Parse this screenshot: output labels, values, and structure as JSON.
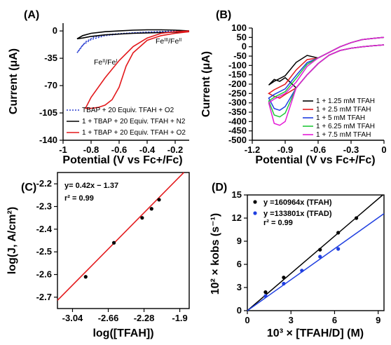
{
  "chart_data": [
    {
      "panel": "(A)",
      "type": "line",
      "xlabel": "Potential (V vs Fc+/Fc)",
      "ylabel": "Current (μA)",
      "xlim": [
        -1.0,
        -0.1
      ],
      "ylim": [
        -140,
        10
      ],
      "xticks": [
        "-1",
        "-0.8",
        "-0.6",
        "-0.4",
        "-0.2"
      ],
      "yticks": [
        "0",
        "-35",
        "-70",
        "-105",
        "-140"
      ],
      "annotations": [
        "FeIII/FeII",
        "FeII/FeI"
      ],
      "series": [
        {
          "name": "TBAP + 20 Equiv. TFAH + O2",
          "color": "#2b3fd1",
          "style": "dotted",
          "x": [
            -0.1,
            -0.3,
            -0.5,
            -0.6,
            -0.7,
            -0.78,
            -0.84,
            -0.9,
            -0.86,
            -0.8,
            -0.7,
            -0.6,
            -0.5,
            -0.4,
            -0.3,
            -0.2,
            -0.1
          ],
          "y": [
            -1,
            -1.5,
            -2.5,
            -3.5,
            -5,
            -8,
            -14,
            -28,
            -18,
            -11,
            -6,
            -4,
            -2.5,
            -1.5,
            -0.8,
            -0.2,
            0
          ]
        },
        {
          "name": "1 + TBAP + 20 Equiv. TFAH + N2",
          "color": "#000000",
          "style": "solid",
          "x": [
            -0.1,
            -0.3,
            -0.5,
            -0.7,
            -0.8,
            -0.86,
            -0.9,
            -0.86,
            -0.8,
            -0.7,
            -0.6,
            -0.5,
            -0.4,
            -0.3,
            -0.2,
            -0.1
          ],
          "y": [
            -1,
            -2,
            -3,
            -5,
            -7,
            -9,
            -10,
            -6,
            -3,
            -1,
            0,
            1,
            1.5,
            1.5,
            1,
            0
          ]
        },
        {
          "name": "1 + TBAP + 20 Equiv. TFAH + O2",
          "color": "#e3191c",
          "style": "solid",
          "x": [
            -0.1,
            -0.2,
            -0.3,
            -0.4,
            -0.5,
            -0.55,
            -0.6,
            -0.65,
            -0.7,
            -0.75,
            -0.8,
            -0.84,
            -0.8,
            -0.7,
            -0.6,
            -0.5,
            -0.4,
            -0.3,
            -0.2,
            -0.1
          ],
          "y": [
            -1,
            -3,
            -6,
            -12,
            -28,
            -45,
            -72,
            -88,
            -95,
            -98,
            -99,
            -99,
            -85,
            -60,
            -38,
            -20,
            -9,
            -3,
            -1,
            0
          ]
        }
      ]
    },
    {
      "panel": "(B)",
      "type": "line",
      "xlabel": "Potential (V vs Fc+/Fc)",
      "ylabel": "Current (μA)",
      "xlim": [
        -1.2,
        0.0
      ],
      "ylim": [
        -500,
        100
      ],
      "xticks": [
        "-1.2",
        "-0.9",
        "-0.6",
        "-0.3",
        "0"
      ],
      "yticks": [
        "100",
        "50",
        "0",
        "-50",
        "-100",
        "-150",
        "-200",
        "-250",
        "-300",
        "-350",
        "-400",
        "-450",
        "-500"
      ],
      "series": [
        {
          "name": "1 + 1.25 mM TFAH",
          "color": "#000000",
          "peak": -185,
          "start": -205
        },
        {
          "name": "1 + 2.5 mM TFAH",
          "color": "#e3191c",
          "peak": -275,
          "start": -250
        },
        {
          "name": "1 + 5 mM TFAH",
          "color": "#1f3fe0",
          "peak": -340,
          "start": -275
        },
        {
          "name": "1 + 6.25 mM TFAH",
          "color": "#22c83a",
          "peak": -375,
          "start": -290
        },
        {
          "name": "1 + 7.5 mM TFAH",
          "color": "#e51cd6",
          "peak": -420,
          "start": -300
        }
      ]
    },
    {
      "panel": "(C)",
      "type": "scatter",
      "xlabel": "log([TFAH])",
      "ylabel": "log(J, A/cm²)",
      "xlim": [
        -3.2,
        -1.8
      ],
      "ylim": [
        -2.75,
        -2.15
      ],
      "xticks": [
        "-3.04",
        "-2.66",
        "-2.28",
        "-1.9"
      ],
      "yticks": [
        "-2.2",
        "-2.3",
        "-2.4",
        "-2.5",
        "-2.6",
        "-2.7"
      ],
      "equation": "y= 0.42x − 1.37",
      "r2": "r² = 0.99",
      "points": {
        "x": [
          -2.9,
          -2.6,
          -2.3,
          -2.2,
          -2.12
        ],
        "y": [
          -2.61,
          -2.46,
          -2.35,
          -2.31,
          -2.27
        ]
      },
      "fit": {
        "slope": 0.42,
        "intercept": -1.37,
        "color": "#e3191c"
      }
    },
    {
      "panel": "(D)",
      "type": "scatter",
      "xlabel": "10³ × [TFAH/D] (M)",
      "ylabel": "10² × kobs (s⁻¹)",
      "xlim": [
        0,
        9.4
      ],
      "ylim": [
        0,
        15
      ],
      "xticks": [
        "0",
        "3",
        "6",
        "9"
      ],
      "yticks": [
        "0",
        "3",
        "6",
        "9",
        "12",
        "15"
      ],
      "r2": "r² = 0.99",
      "series": [
        {
          "name": "y =160964x (TFAH)",
          "color": "#000000",
          "slope": 1.61,
          "x": [
            1.25,
            2.5,
            5.0,
            6.25,
            7.5
          ],
          "y": [
            2.4,
            4.3,
            7.9,
            10.1,
            12.0
          ]
        },
        {
          "name": "y =133801x (TFAD)",
          "color": "#1f3fe0",
          "slope": 1.338,
          "x": [
            1.25,
            2.5,
            3.75,
            5.0,
            6.25
          ],
          "y": [
            1.9,
            3.5,
            5.2,
            7.0,
            8.0
          ]
        }
      ]
    }
  ]
}
